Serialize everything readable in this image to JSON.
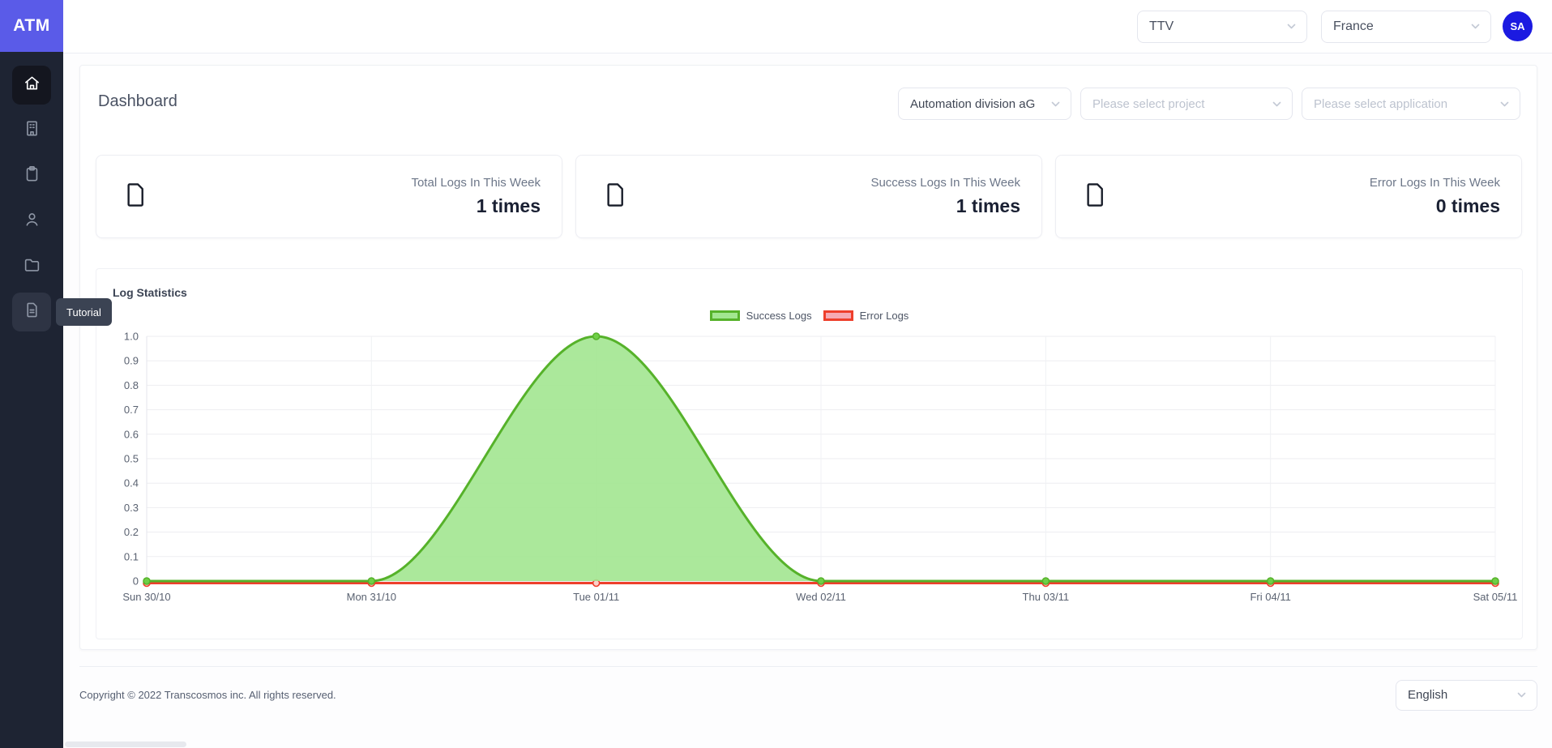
{
  "app": {
    "logo": "ATM"
  },
  "sidebar": {
    "tooltip": "Tutorial",
    "items": [
      {
        "icon": "home-icon",
        "active": true
      },
      {
        "icon": "building-icon",
        "active": false
      },
      {
        "icon": "clipboard-icon",
        "active": false
      },
      {
        "icon": "user-icon",
        "active": false
      },
      {
        "icon": "folder-icon",
        "active": false
      },
      {
        "icon": "document-icon",
        "active": false,
        "hovered": true,
        "tooltip": "Tutorial"
      }
    ]
  },
  "topbar": {
    "team_select": "TTV",
    "country_select": "France",
    "avatar_initials": "SA"
  },
  "page": {
    "title": "Dashboard",
    "filters": {
      "division_value": "Automation division aG",
      "project_placeholder": "Please select project",
      "application_placeholder": "Please select application"
    }
  },
  "stats": [
    {
      "label": "Total Logs In This Week",
      "value": "1 times"
    },
    {
      "label": "Success Logs In This Week",
      "value": "1 times"
    },
    {
      "label": "Error Logs In This Week",
      "value": "0 times"
    }
  ],
  "chart_data": {
    "type": "line",
    "title": "Log Statistics",
    "categories": [
      "Sun 30/10",
      "Mon 31/10",
      "Tue 01/11",
      "Wed 02/11",
      "Thu 03/11",
      "Fri 04/11",
      "Sat 05/11"
    ],
    "series": [
      {
        "name": "Success Logs",
        "values": [
          0,
          0,
          1,
          0,
          0,
          0,
          0
        ],
        "line_color": "#56b22a",
        "fill_color": "#a2e690",
        "point_color": "#6fcf47",
        "area": true
      },
      {
        "name": "Error Logs",
        "values": [
          0,
          0,
          0,
          0,
          0,
          0,
          0
        ],
        "line_color": "#ee3f2c",
        "fill_color": "#f6aab4",
        "point_color": "#fbd0ca",
        "area": false
      }
    ],
    "ylim": [
      0,
      1
    ],
    "yticks": [
      0,
      0.1,
      0.2,
      0.3,
      0.4,
      0.5,
      0.6,
      0.7,
      0.8,
      0.9,
      1.0
    ],
    "grid": true,
    "smooth": true,
    "legend_position": "top"
  },
  "footer": {
    "copyright": "Copyright © 2022 Transcosmos inc. All rights reserved.",
    "language": "English"
  },
  "colors": {
    "accent": "#5a5be8",
    "avatar": "#1b1ae1",
    "sidebar_bg": "#1e2433",
    "success": "#56b22a",
    "error": "#ee3f2c"
  }
}
